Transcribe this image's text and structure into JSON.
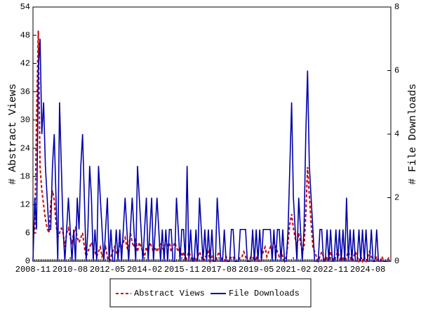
{
  "chart_data": {
    "type": "line",
    "ylabel": "# Abstract Views",
    "y2label": "# File Downloads",
    "categories": [
      "2008-11",
      null,
      null,
      null,
      null,
      null,
      null,
      null,
      null,
      null,
      null,
      null,
      null,
      null,
      null,
      null,
      null,
      null,
      null,
      null,
      null,
      "2010-08",
      null,
      null,
      null,
      null,
      null,
      null,
      null,
      null,
      null,
      null,
      null,
      null,
      null,
      null,
      null,
      null,
      null,
      null,
      null,
      null,
      "2012-05",
      null,
      null,
      null,
      null,
      null,
      null,
      null,
      null,
      null,
      null,
      null,
      null,
      null,
      null,
      null,
      null,
      null,
      null,
      null,
      null,
      "2014-02",
      null,
      null,
      null,
      null,
      null,
      null,
      null,
      null,
      null,
      null,
      null,
      null,
      null,
      null,
      null,
      null,
      null,
      null,
      null,
      null,
      "2015-11",
      null,
      null,
      null,
      null,
      null,
      null,
      null,
      null,
      null,
      null,
      null,
      null,
      null,
      null,
      null,
      null,
      null,
      null,
      null,
      null,
      "2017-08",
      null,
      null,
      null,
      null,
      null,
      null,
      null,
      null,
      null,
      null,
      null,
      null,
      null,
      null,
      null,
      null,
      null,
      null,
      null,
      null,
      "2019-05",
      null,
      null,
      null,
      null,
      null,
      null,
      null,
      null,
      null,
      null,
      null,
      null,
      null,
      null,
      null,
      null,
      null,
      null,
      null,
      null,
      "2021-02",
      null,
      null,
      null,
      null,
      null,
      null,
      null,
      null,
      null,
      null,
      null,
      null,
      null,
      null,
      null,
      null,
      null,
      null,
      null,
      null,
      "2022-11",
      null,
      null,
      null,
      null,
      null,
      null,
      null,
      null,
      null,
      null,
      null,
      null,
      null,
      null,
      null,
      null,
      null,
      null,
      null,
      null,
      "2024-08",
      null,
      null,
      null,
      null,
      null,
      null,
      null,
      null,
      null,
      null,
      null,
      null,
      null
    ],
    "series": [
      {
        "name": "Abstract Views",
        "color": "#cc0000",
        "dash": true,
        "values": [
          6,
          6,
          30,
          49,
          20,
          15,
          12,
          9,
          7,
          6,
          12,
          15,
          13,
          8,
          5,
          6,
          7,
          6,
          3,
          6,
          7,
          5,
          4,
          6,
          7,
          5,
          4,
          5,
          6,
          3,
          1,
          2,
          3,
          4,
          3,
          2,
          1,
          2,
          3,
          1,
          2,
          3,
          1,
          0,
          1,
          2,
          3,
          2,
          1,
          4,
          3,
          4,
          5,
          3,
          2,
          6,
          4,
          3,
          5,
          2,
          4,
          3,
          2,
          1,
          3,
          2,
          4,
          3,
          2,
          3,
          2,
          3,
          4,
          3,
          2,
          5,
          3,
          4,
          2,
          3,
          4,
          3,
          2,
          3,
          1,
          2,
          0,
          1,
          2,
          1,
          0,
          1,
          0,
          1,
          2,
          1,
          0,
          1,
          1,
          2,
          0,
          1,
          0,
          0,
          1,
          2,
          1,
          0,
          0,
          1,
          0,
          0,
          1,
          1,
          0,
          0,
          0,
          1,
          1,
          2,
          1,
          0,
          0,
          1,
          1,
          0,
          1,
          0,
          0,
          1,
          2,
          3,
          1,
          2,
          3,
          2,
          4,
          3,
          2,
          1,
          2,
          1,
          0,
          1,
          4,
          8,
          10,
          7,
          5,
          3,
          6,
          4,
          2,
          3,
          10,
          20,
          14,
          8,
          3,
          2,
          1,
          0,
          1,
          2,
          1,
          0,
          1,
          0,
          2,
          1,
          0,
          1,
          2,
          1,
          0,
          1,
          0,
          1,
          2,
          1,
          0,
          1,
          2,
          1,
          0,
          1,
          0,
          1,
          0,
          1,
          2,
          1,
          0,
          0,
          1,
          0,
          0,
          1,
          0,
          0,
          0,
          1,
          1
        ]
      },
      {
        "name": "File Downloads",
        "color": "#0000aa",
        "axis": "y2",
        "values": [
          0,
          2,
          1,
          6,
          7,
          4,
          5,
          3,
          2,
          1,
          1,
          3,
          4,
          2,
          0,
          5,
          3,
          1,
          0,
          1,
          2,
          1,
          0,
          1,
          0,
          2,
          1,
          3,
          4,
          2,
          0,
          1,
          3,
          2,
          0,
          1,
          0,
          3,
          2,
          1,
          0,
          1,
          2,
          0,
          1,
          0,
          0,
          1,
          0,
          1,
          0,
          1,
          2,
          1,
          0,
          1,
          2,
          1,
          0,
          3,
          2,
          1,
          0,
          1,
          2,
          0,
          1,
          2,
          0,
          1,
          2,
          1,
          0,
          1,
          0,
          1,
          0,
          1,
          1,
          0,
          0,
          2,
          1,
          0,
          1,
          1,
          0,
          3,
          0,
          1,
          0,
          0,
          1,
          0,
          2,
          1,
          0,
          1,
          0,
          1,
          0,
          1,
          0,
          0,
          2,
          1,
          0,
          0,
          1,
          0,
          0,
          0,
          1,
          1,
          0,
          0,
          0,
          1,
          1,
          1,
          1,
          0,
          0,
          0,
          1,
          0,
          1,
          0,
          1,
          0,
          1,
          1,
          1,
          1,
          1,
          0,
          1,
          0,
          1,
          1,
          0,
          1,
          0,
          0,
          1,
          3,
          5,
          2,
          1,
          0,
          2,
          1,
          0,
          1,
          4,
          6,
          3,
          2,
          1,
          0,
          0,
          0,
          1,
          1,
          0,
          0,
          1,
          0,
          1,
          0,
          0,
          1,
          0,
          1,
          0,
          1,
          0,
          2,
          0,
          1,
          0,
          1,
          0,
          0,
          1,
          0,
          1,
          0,
          1,
          0,
          0,
          1,
          0,
          0,
          1,
          0,
          0,
          0,
          0,
          0,
          0,
          0,
          0
        ]
      }
    ],
    "ylim": [
      0,
      54
    ],
    "yticks": [
      0,
      6,
      12,
      18,
      24,
      30,
      36,
      42,
      48,
      54
    ],
    "y2lim": [
      0,
      8
    ],
    "y2ticks": [
      0,
      2,
      4,
      6,
      8
    ]
  }
}
